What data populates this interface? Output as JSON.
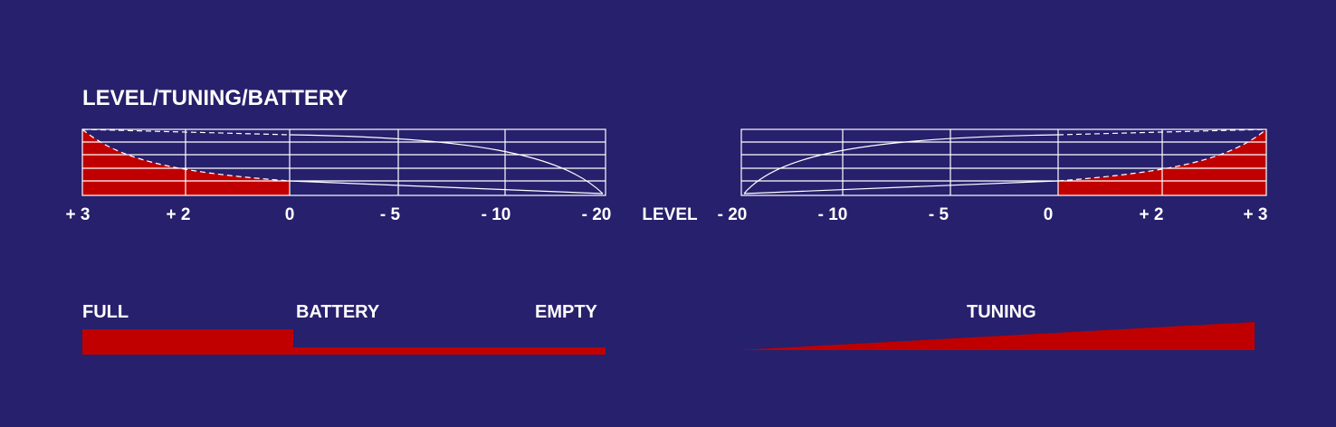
{
  "title": "LEVEL/TUNING/BATTERY",
  "level_label": "LEVEL",
  "left_meter": {
    "ticks": [
      "+ 3",
      "+ 2",
      "0",
      "- 5",
      "- 10",
      "- 20"
    ]
  },
  "right_meter": {
    "ticks": [
      "- 20",
      "- 10",
      "- 5",
      "0",
      "+ 2",
      "+ 3"
    ]
  },
  "battery": {
    "label": "BATTERY",
    "full_label": "FULL",
    "empty_label": "EMPTY"
  },
  "tuning": {
    "label": "TUNING"
  },
  "colors": {
    "background": "#27206c",
    "fill": "#c00000",
    "grid": "#ffffff"
  }
}
